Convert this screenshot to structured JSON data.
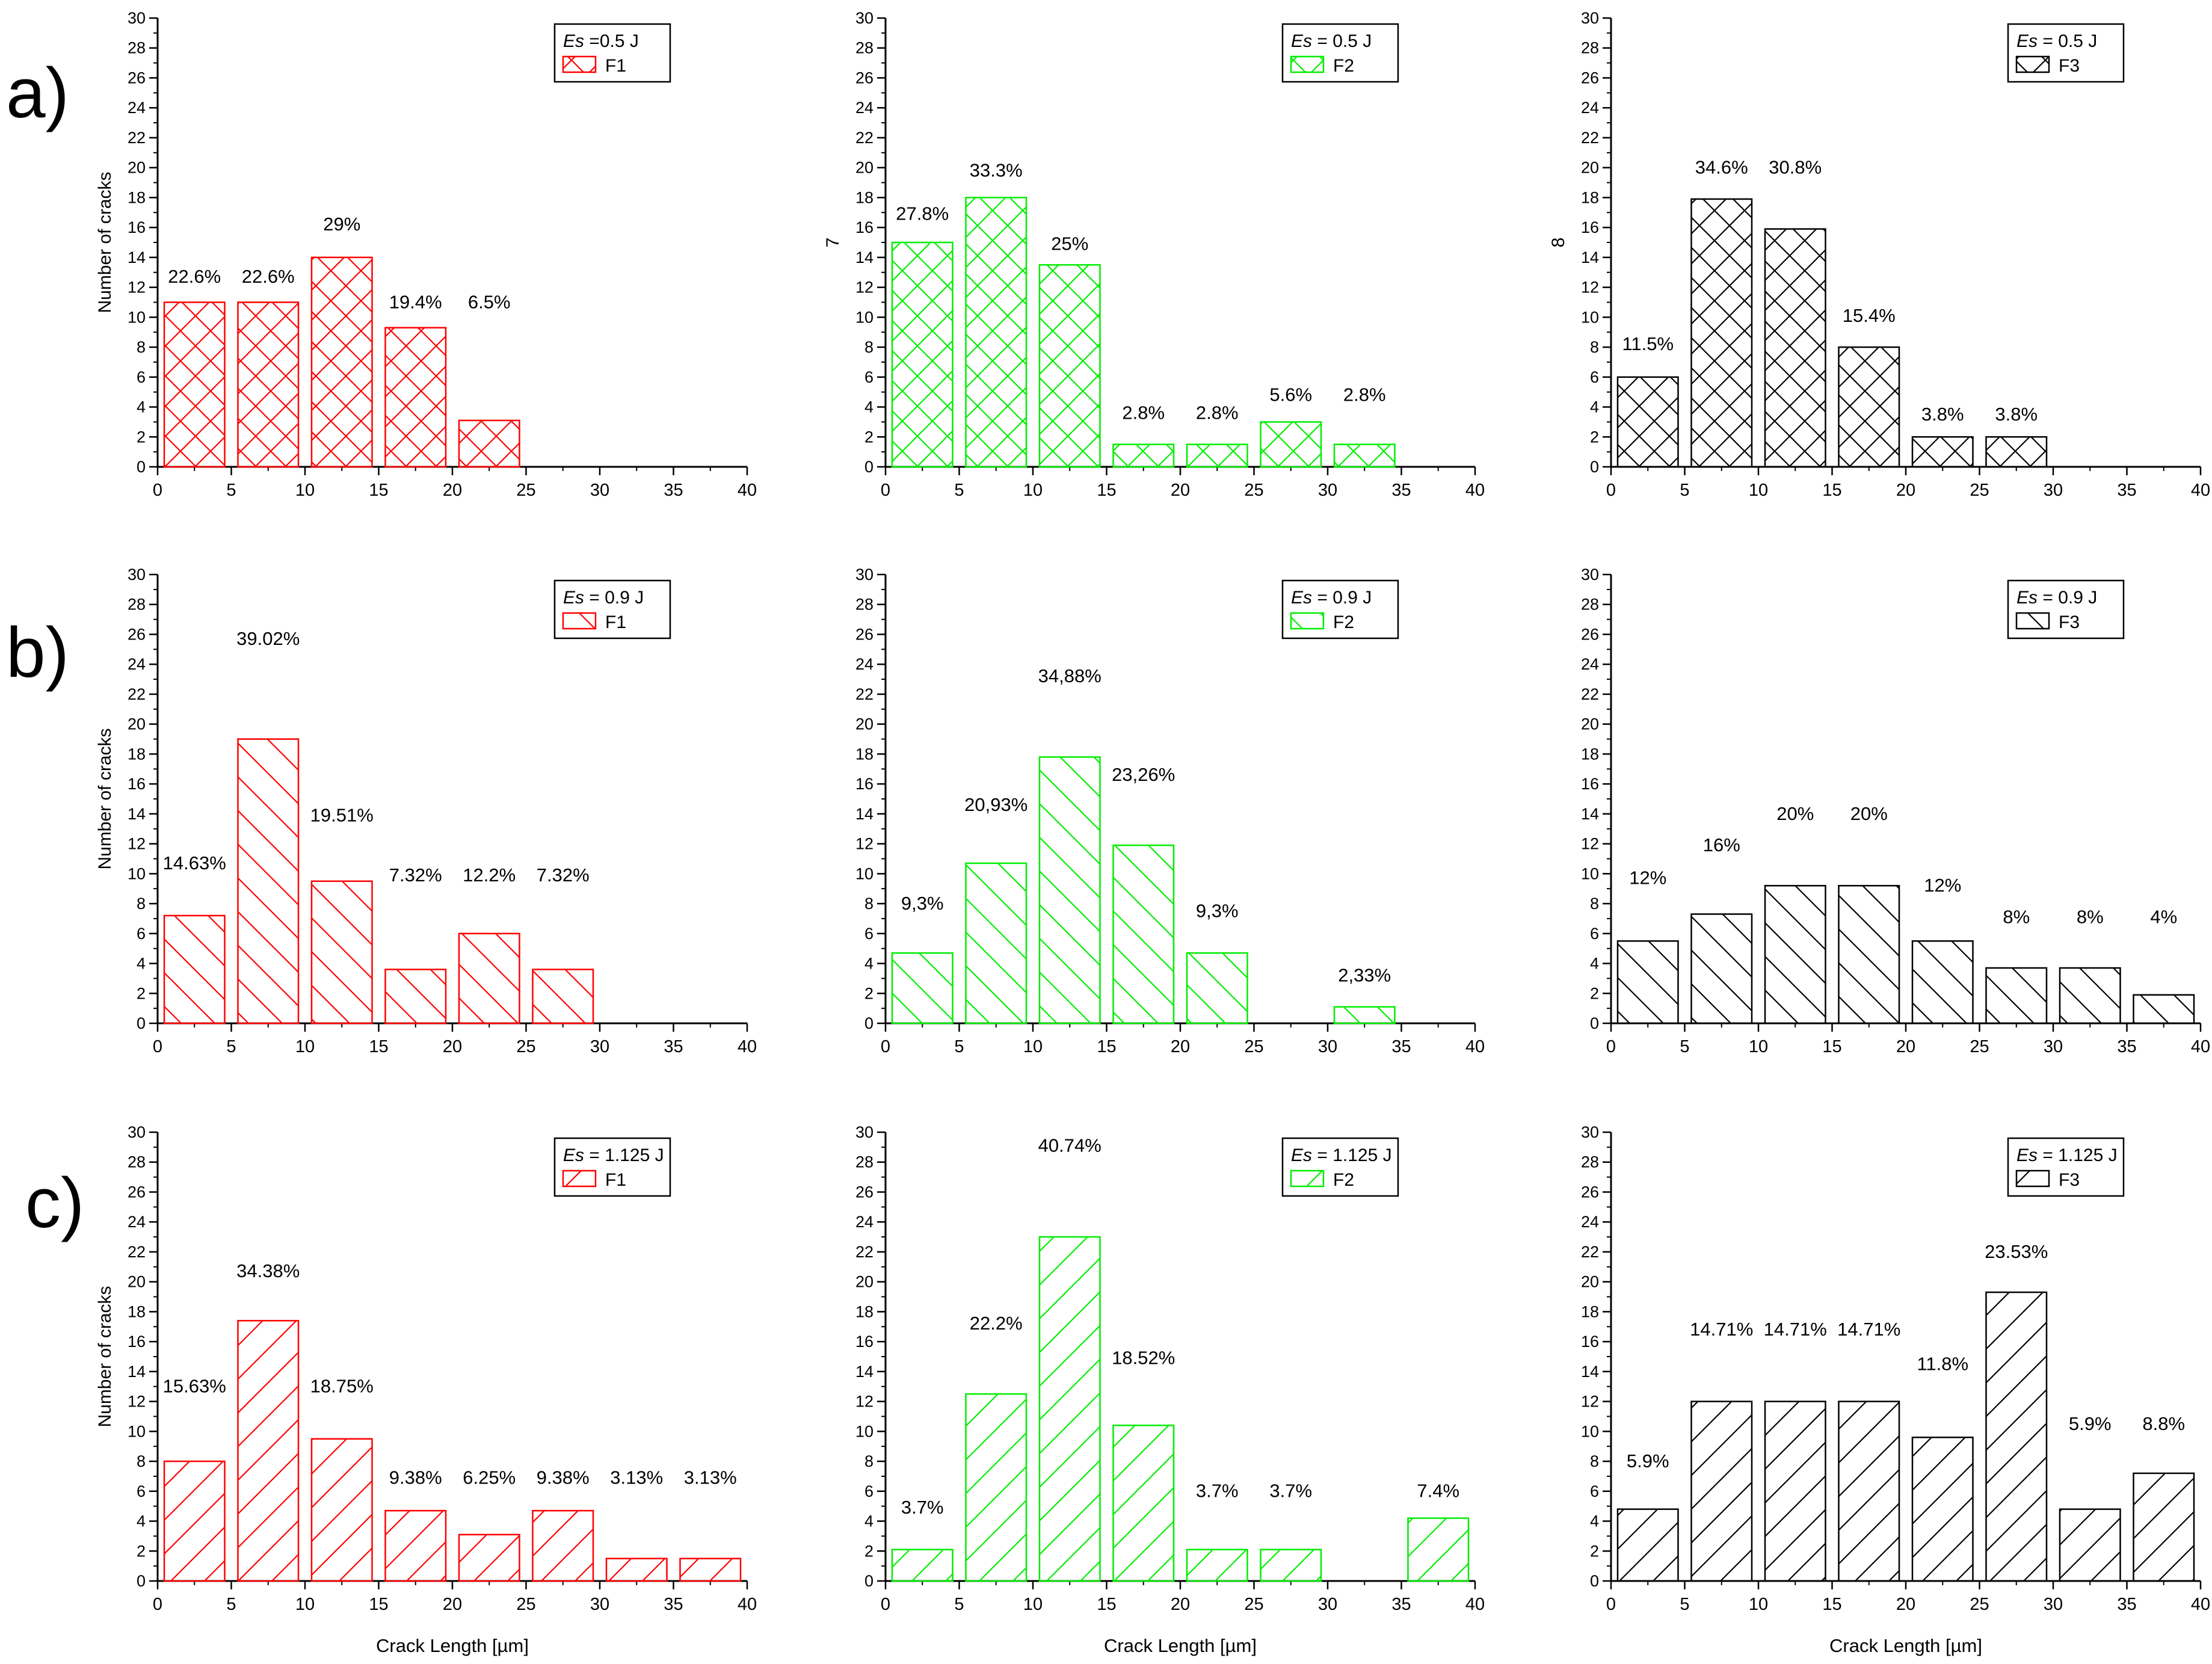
{
  "figure": {
    "row_labels": [
      "a)",
      "b)",
      "c)"
    ],
    "colors": {
      "F1": "#ff0000",
      "F2": "#00ee00",
      "F3": "#000000"
    },
    "common_x_label": "Crack Length [µm]"
  },
  "chart_data": [
    {
      "id": "a-F1",
      "type": "bar",
      "row": 0,
      "col": 0,
      "ylabel": "Number of cracks",
      "xlabel": "",
      "xlim": [
        0,
        40
      ],
      "ylim": [
        0,
        30
      ],
      "xticks": [
        0,
        5,
        10,
        15,
        20,
        25,
        30,
        35,
        40
      ],
      "yticks": [
        0,
        2,
        4,
        6,
        8,
        10,
        12,
        14,
        16,
        18,
        20,
        22,
        24,
        26,
        28,
        30
      ],
      "legend": {
        "es_prefix": "Es",
        "es_value": " =0.5 J",
        "series": "F1",
        "position": "top-right"
      },
      "color": "#ff0000",
      "hatch": "cross",
      "bins": [
        [
          0,
          5
        ],
        [
          5,
          10
        ],
        [
          10,
          15
        ],
        [
          15,
          20
        ],
        [
          20,
          25
        ]
      ],
      "values": [
        11,
        11,
        14,
        9.3,
        3.1
      ],
      "labels": [
        "22.6%",
        "22.6%",
        "29%",
        "19.4%",
        "6.5%"
      ],
      "label_y": [
        12.3,
        12.3,
        15.8,
        10.6,
        10.6
      ]
    },
    {
      "id": "a-F2",
      "type": "bar",
      "row": 0,
      "col": 1,
      "ylabel": "7",
      "xlabel": "",
      "xlim": [
        0,
        40
      ],
      "ylim": [
        0,
        30
      ],
      "xticks": [
        0,
        5,
        10,
        15,
        20,
        25,
        30,
        35,
        40
      ],
      "yticks": [
        0,
        2,
        4,
        6,
        8,
        10,
        12,
        14,
        16,
        18,
        20,
        22,
        24,
        26,
        28,
        30
      ],
      "legend": {
        "es_prefix": "Es",
        "es_value": " = 0.5 J",
        "series": "F2",
        "position": "top-right"
      },
      "color": "#00ee00",
      "hatch": "cross",
      "bins": [
        [
          0,
          5
        ],
        [
          5,
          10
        ],
        [
          10,
          15
        ],
        [
          15,
          20
        ],
        [
          20,
          25
        ],
        [
          25,
          30
        ],
        [
          30,
          35
        ]
      ],
      "values": [
        15,
        18,
        13.5,
        1.5,
        1.5,
        3,
        1.5
      ],
      "labels": [
        "27.8%",
        "33.3%",
        "25%",
        "2.8%",
        "2.8%",
        "5.6%",
        "2.8%"
      ],
      "label_y": [
        16.5,
        19.4,
        14.5,
        3.2,
        3.2,
        4.4,
        4.4
      ]
    },
    {
      "id": "a-F3",
      "type": "bar",
      "row": 0,
      "col": 2,
      "ylabel": "8",
      "xlabel": "",
      "xlim": [
        0,
        40
      ],
      "ylim": [
        0,
        30
      ],
      "xticks": [
        0,
        5,
        10,
        15,
        20,
        25,
        30,
        35,
        40
      ],
      "yticks": [
        0,
        2,
        4,
        6,
        8,
        10,
        12,
        14,
        16,
        18,
        20,
        22,
        24,
        26,
        28,
        30
      ],
      "legend": {
        "es_prefix": "Es",
        "es_value": " = 0.5 J",
        "series": "F3",
        "position": "top-right"
      },
      "color": "#000000",
      "hatch": "cross",
      "bins": [
        [
          0,
          5
        ],
        [
          5,
          10
        ],
        [
          10,
          15
        ],
        [
          15,
          20
        ],
        [
          20,
          25
        ],
        [
          25,
          30
        ]
      ],
      "values": [
        6,
        17.9,
        15.9,
        8,
        2,
        2
      ],
      "labels": [
        "11.5%",
        "34.6%",
        "30.8%",
        "15.4%",
        "3.8%",
        "3.8%"
      ],
      "label_y": [
        7.8,
        19.6,
        19.6,
        9.7,
        3.1,
        3.1
      ]
    },
    {
      "id": "b-F1",
      "type": "bar",
      "row": 1,
      "col": 0,
      "ylabel": "Number of cracks",
      "xlabel": "",
      "xlim": [
        0,
        40
      ],
      "ylim": [
        0,
        30
      ],
      "xticks": [
        0,
        5,
        10,
        15,
        20,
        25,
        30,
        35,
        40
      ],
      "yticks": [
        0,
        2,
        4,
        6,
        8,
        10,
        12,
        14,
        16,
        18,
        20,
        22,
        24,
        26,
        28,
        30
      ],
      "legend": {
        "es_prefix": "Es",
        "es_value": " = 0.9 J",
        "series": "F1",
        "position": "top-right"
      },
      "color": "#ff0000",
      "hatch": "back",
      "bins": [
        [
          0,
          5
        ],
        [
          5,
          10
        ],
        [
          10,
          15
        ],
        [
          15,
          20
        ],
        [
          20,
          25
        ],
        [
          25,
          30
        ]
      ],
      "values": [
        7.2,
        19,
        9.5,
        3.6,
        6,
        3.6
      ],
      "labels": [
        "14.63%",
        "39.02%",
        "19.51%",
        "7.32%",
        "12.2%",
        "7.32%"
      ],
      "label_y": [
        10.3,
        25.3,
        13.5,
        9.5,
        9.5,
        9.5
      ]
    },
    {
      "id": "b-F2",
      "type": "bar",
      "row": 1,
      "col": 1,
      "ylabel": "",
      "xlabel": "",
      "xlim": [
        0,
        40
      ],
      "ylim": [
        0,
        30
      ],
      "xticks": [
        0,
        5,
        10,
        15,
        20,
        25,
        30,
        35,
        40
      ],
      "yticks": [
        0,
        2,
        4,
        6,
        8,
        10,
        12,
        14,
        16,
        18,
        20,
        22,
        24,
        26,
        28,
        30
      ],
      "legend": {
        "es_prefix": "Es",
        "es_value": " = 0.9 J",
        "series": "F2",
        "position": "top-right"
      },
      "color": "#00ee00",
      "hatch": "back",
      "bins": [
        [
          0,
          5
        ],
        [
          5,
          10
        ],
        [
          10,
          15
        ],
        [
          15,
          20
        ],
        [
          20,
          25
        ],
        [
          30,
          35
        ]
      ],
      "values": [
        4.7,
        10.7,
        17.8,
        11.9,
        4.7,
        1.1
      ],
      "labels": [
        "9,3%",
        "20,93%",
        "34,88%",
        "23,26%",
        "9,3%",
        "2,33%"
      ],
      "label_y": [
        7.6,
        14.2,
        22.8,
        16.2,
        7.1,
        2.8
      ]
    },
    {
      "id": "b-F3",
      "type": "bar",
      "row": 1,
      "col": 2,
      "ylabel": "",
      "xlabel": "",
      "xlim": [
        0,
        40
      ],
      "ylim": [
        0,
        30
      ],
      "xticks": [
        0,
        5,
        10,
        15,
        20,
        25,
        30,
        35,
        40
      ],
      "yticks": [
        0,
        2,
        4,
        6,
        8,
        10,
        12,
        14,
        16,
        18,
        20,
        22,
        24,
        26,
        28,
        30
      ],
      "legend": {
        "es_prefix": "Es",
        "es_value": " = 0.9 J",
        "series": "F3",
        "position": "top-right"
      },
      "color": "#000000",
      "hatch": "back",
      "bins": [
        [
          0,
          5
        ],
        [
          5,
          10
        ],
        [
          10,
          15
        ],
        [
          15,
          20
        ],
        [
          20,
          25
        ],
        [
          25,
          30
        ],
        [
          30,
          35
        ],
        [
          35,
          40
        ]
      ],
      "values": [
        5.5,
        7.3,
        9.2,
        9.2,
        5.5,
        3.7,
        3.7,
        1.9
      ],
      "labels": [
        "12%",
        "16%",
        "20%",
        "20%",
        "12%",
        "8%",
        "8%",
        "4%"
      ],
      "label_y": [
        9.3,
        11.5,
        13.6,
        13.6,
        8.8,
        6.7,
        6.7,
        6.7
      ]
    },
    {
      "id": "c-F1",
      "type": "bar",
      "row": 2,
      "col": 0,
      "ylabel": "Number of cracks",
      "xlabel": "Crack Length [µm]",
      "xlim": [
        0,
        40
      ],
      "ylim": [
        0,
        30
      ],
      "xticks": [
        0,
        5,
        10,
        15,
        20,
        25,
        30,
        35,
        40
      ],
      "yticks": [
        0,
        2,
        4,
        6,
        8,
        10,
        12,
        14,
        16,
        18,
        20,
        22,
        24,
        26,
        28,
        30
      ],
      "legend": {
        "es_prefix": "Es",
        "es_value": " = 1.125 J",
        "series": "F1",
        "position": "top-right"
      },
      "color": "#ff0000",
      "hatch": "fwd",
      "bins": [
        [
          0,
          5
        ],
        [
          5,
          10
        ],
        [
          10,
          15
        ],
        [
          15,
          20
        ],
        [
          20,
          25
        ],
        [
          25,
          30
        ],
        [
          30,
          35
        ],
        [
          35,
          40
        ]
      ],
      "values": [
        8,
        17.4,
        9.5,
        4.7,
        3.1,
        4.7,
        1.5,
        1.5
      ],
      "labels": [
        "15.63%",
        "34.38%",
        "18.75%",
        "9.38%",
        "6.25%",
        "9.38%",
        "3.13%",
        "3.13%"
      ],
      "label_y": [
        12.6,
        20.3,
        12.6,
        6.5,
        6.5,
        6.5,
        6.5,
        6.5
      ]
    },
    {
      "id": "c-F2",
      "type": "bar",
      "row": 2,
      "col": 1,
      "ylabel": "",
      "xlabel": "Crack Length [µm]",
      "xlim": [
        0,
        40
      ],
      "ylim": [
        0,
        30
      ],
      "xticks": [
        0,
        5,
        10,
        15,
        20,
        25,
        30,
        35,
        40
      ],
      "yticks": [
        0,
        2,
        4,
        6,
        8,
        10,
        12,
        14,
        16,
        18,
        20,
        22,
        24,
        26,
        28,
        30
      ],
      "legend": {
        "es_prefix": "Es",
        "es_value": " = 1.125 J",
        "series": "F2",
        "position": "top-right"
      },
      "color": "#00ee00",
      "hatch": "fwd",
      "bins": [
        [
          0,
          5
        ],
        [
          5,
          10
        ],
        [
          10,
          15
        ],
        [
          15,
          20
        ],
        [
          20,
          25
        ],
        [
          25,
          30
        ],
        [
          35,
          40
        ]
      ],
      "values": [
        2.1,
        12.5,
        23,
        10.4,
        2.1,
        2.1,
        4.2
      ],
      "labels": [
        "3.7%",
        "22.2%",
        "40.74%",
        "18.52%",
        "3.7%",
        "3.7%",
        "7.4%"
      ],
      "label_y": [
        4.5,
        16.8,
        28.7,
        14.5,
        5.6,
        5.6,
        5.6
      ]
    },
    {
      "id": "c-F3",
      "type": "bar",
      "row": 2,
      "col": 2,
      "ylabel": "",
      "xlabel": "Crack Length [µm]",
      "xlim": [
        0,
        40
      ],
      "ylim": [
        0,
        30
      ],
      "xticks": [
        0,
        5,
        10,
        15,
        20,
        25,
        30,
        35,
        40
      ],
      "yticks": [
        0,
        2,
        4,
        6,
        8,
        10,
        12,
        14,
        16,
        18,
        20,
        22,
        24,
        26,
        28,
        30
      ],
      "legend": {
        "es_prefix": "Es",
        "es_value": " = 1.125 J",
        "series": "F3",
        "position": "top-right"
      },
      "color": "#000000",
      "hatch": "fwd",
      "bins": [
        [
          0,
          5
        ],
        [
          5,
          10
        ],
        [
          10,
          15
        ],
        [
          15,
          20
        ],
        [
          20,
          25
        ],
        [
          25,
          30
        ],
        [
          30,
          35
        ],
        [
          35,
          40
        ]
      ],
      "values": [
        4.8,
        12,
        12,
        12,
        9.6,
        19.3,
        4.8,
        7.2
      ],
      "labels": [
        "5.9%",
        "14.71%",
        "14.71%",
        "14.71%",
        "11.8%",
        "23.53%",
        "5.9%",
        "8.8%"
      ],
      "label_y": [
        7.6,
        16.4,
        16.4,
        16.4,
        14.1,
        21.6,
        10.1,
        10.1
      ]
    }
  ]
}
